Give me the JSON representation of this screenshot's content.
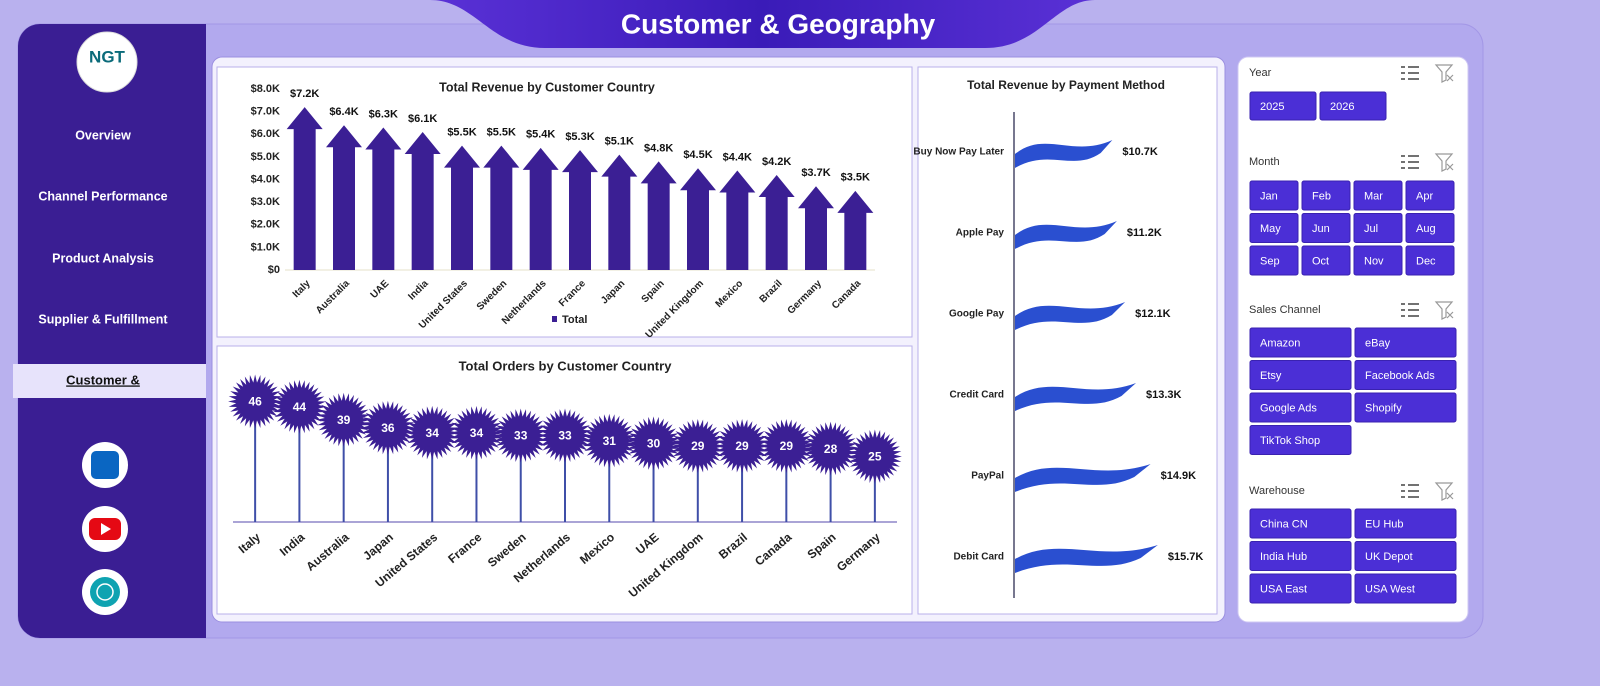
{
  "header": {
    "title": "Customer & Geography"
  },
  "sidebar": {
    "logo": "NGT",
    "nav": [
      {
        "label": "Overview"
      },
      {
        "label": "Channel Performance"
      },
      {
        "label": "Product Analysis"
      },
      {
        "label": "Supplier & Fulfillment"
      },
      {
        "label": "Customer &",
        "active": true
      }
    ]
  },
  "chart_data": [
    {
      "type": "arrow_bar",
      "title": "Total Revenue  by Customer Country",
      "categories": [
        "Italy",
        "Australia",
        "UAE",
        "India",
        "United States",
        "Sweden",
        "Netherlands",
        "France",
        "Japan",
        "Spain",
        "United Kingdom",
        "Mexico",
        "Brazil",
        "Germany",
        "Canada"
      ],
      "series": [
        {
          "name": "Total",
          "color": "#3b1f94",
          "values": [
            7200,
            6400,
            6300,
            6100,
            5500,
            5500,
            5400,
            5300,
            5100,
            4800,
            4500,
            4400,
            4200,
            3700,
            3500
          ],
          "value_labels": [
            "$7.2K",
            "$6.4K",
            "$6.3K",
            "$6.1K",
            "$5.5K",
            "$5.5K",
            "$5.4K",
            "$5.3K",
            "$5.1K",
            "$4.8K",
            "$4.5K",
            "$4.4K",
            "$4.2K",
            "$3.7K",
            "$3.5K"
          ]
        }
      ],
      "ylim": [
        0,
        8000
      ],
      "yticks": [
        {
          "value": 0,
          "label": "$0"
        },
        {
          "value": 1000,
          "label": "$1.0K"
        },
        {
          "value": 2000,
          "label": "$2.0K"
        },
        {
          "value": 3000,
          "label": "$3.0K"
        },
        {
          "value": 4000,
          "label": "$4.0K"
        },
        {
          "value": 5000,
          "label": "$5.0K"
        },
        {
          "value": 6000,
          "label": "$6.0K"
        },
        {
          "value": 7000,
          "label": "$7.0K"
        },
        {
          "value": 8000,
          "label": "$8.0K"
        }
      ],
      "legend": "bottom"
    },
    {
      "type": "lollipop",
      "title": "Total Orders by Customer Country",
      "categories": [
        "Italy",
        "India",
        "Australia",
        "Japan",
        "United States",
        "France",
        "Sweden",
        "Netherlands",
        "Mexico",
        "UAE",
        "United Kingdom",
        "Brazil",
        "Canada",
        "Spain",
        "Germany"
      ],
      "values": [
        46,
        44,
        39,
        36,
        34,
        34,
        33,
        33,
        31,
        30,
        29,
        29,
        29,
        28,
        25
      ],
      "color": "#3b1f94"
    },
    {
      "type": "flag_bar",
      "title": "Total Revenue by Payment Method",
      "categories": [
        "Buy Now Pay Later",
        "Apple Pay",
        "Google Pay",
        "Credit Card",
        "PayPal",
        "Debit Card"
      ],
      "values": [
        10700,
        11200,
        12100,
        13300,
        14900,
        15700
      ],
      "value_labels": [
        "$10.7K",
        "$11.2K",
        "$12.1K",
        "$13.3K",
        "$14.9K",
        "$15.7K"
      ],
      "color": "#2a4fd0"
    }
  ],
  "slicers": [
    {
      "title": "Year",
      "items": [
        "2025",
        "2026"
      ]
    },
    {
      "title": "Month",
      "items": [
        "Jan",
        "Feb",
        "Mar",
        "Apr",
        "May",
        "Jun",
        "Jul",
        "Aug",
        "Sep",
        "Oct",
        "Nov",
        "Dec"
      ]
    },
    {
      "title": "Sales Channel",
      "items": [
        "Amazon",
        "eBay",
        "Etsy",
        "Facebook Ads",
        "Google Ads",
        "Shopify",
        "TikTok Shop"
      ]
    },
    {
      "title": "Warehouse",
      "items": [
        "China CN",
        "EU Hub",
        "India Hub",
        "UK Depot",
        "USA East",
        "USA West"
      ]
    }
  ]
}
